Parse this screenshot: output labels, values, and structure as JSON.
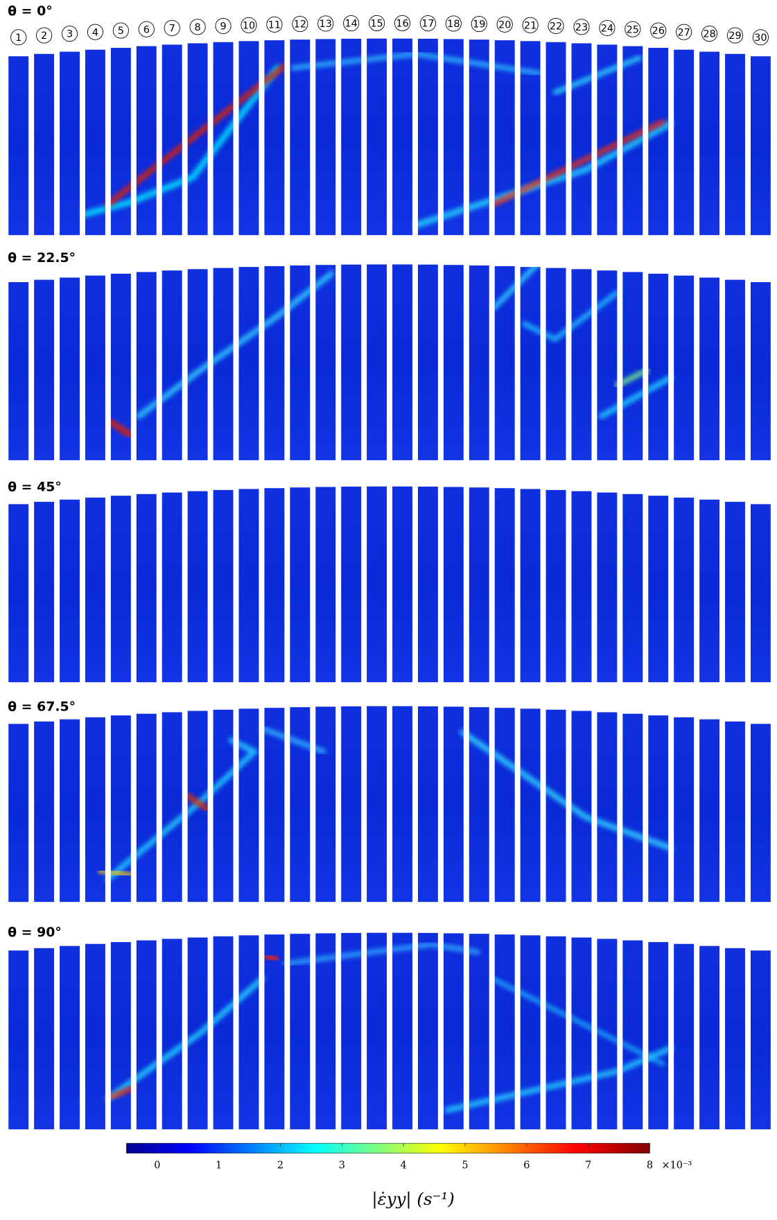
{
  "panels": [
    {
      "title": "θ = 0°"
    },
    {
      "title": "θ = 22.5°"
    },
    {
      "title": "θ = 45°"
    },
    {
      "title": "θ = 67.5°"
    },
    {
      "title": "θ = 90°"
    }
  ],
  "specimens": [
    1,
    2,
    3,
    4,
    5,
    6,
    7,
    8,
    9,
    10,
    11,
    12,
    13,
    14,
    15,
    16,
    17,
    18,
    19,
    20,
    21,
    22,
    23,
    24,
    25,
    26,
    27,
    28,
    29,
    30
  ],
  "colorbar": {
    "range": [
      -0.5,
      8
    ],
    "ticks": [
      0,
      1,
      2,
      3,
      4,
      5,
      6,
      7,
      8
    ],
    "multiplier": "×10⁻³",
    "label": "|ε̇yy| (s⁻¹)"
  }
}
